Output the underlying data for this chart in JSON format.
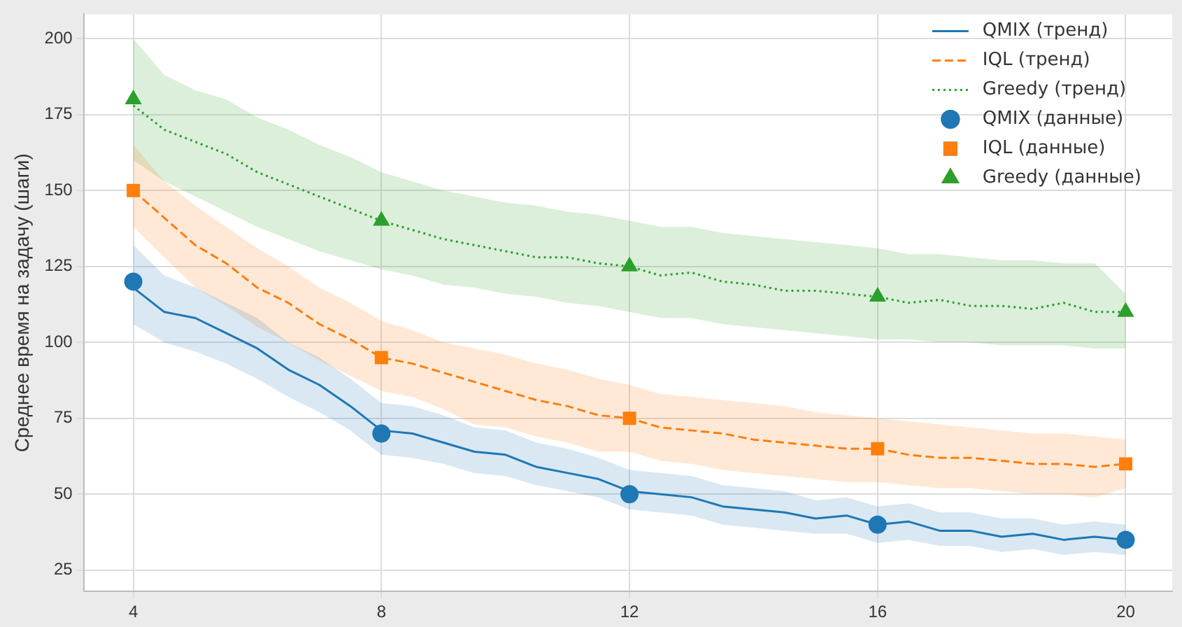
{
  "chart_data": {
    "type": "line",
    "ylabel": "Среднее время на задачу (шаги)",
    "xlim": [
      3.2,
      20.75
    ],
    "ylim": [
      18,
      208
    ],
    "xticks": [
      4,
      8,
      12,
      16,
      20
    ],
    "yticks": [
      25,
      50,
      75,
      100,
      125,
      150,
      175,
      200
    ],
    "grid": true,
    "legend": "top right",
    "x": [
      4,
      4.5,
      5,
      5.5,
      6,
      6.5,
      7,
      7.5,
      8,
      8.5,
      9,
      9.5,
      10,
      10.5,
      11,
      11.5,
      12,
      12.5,
      13,
      13.5,
      14,
      14.5,
      15,
      15.5,
      16,
      16.5,
      17,
      17.5,
      18,
      18.5,
      19,
      19.5,
      20
    ],
    "series": [
      {
        "name": "QMIX (тренд)",
        "color": "#1f77b4",
        "line_style": "solid",
        "values": [
          118,
          110,
          108,
          103,
          98,
          91,
          86,
          79,
          71,
          70,
          67,
          64,
          63,
          59,
          57,
          55,
          51,
          50,
          49,
          46,
          45,
          44,
          42,
          43,
          40,
          41,
          38,
          38,
          36,
          37,
          35,
          36,
          35
        ],
        "lower": [
          106,
          100,
          97,
          93,
          88,
          82,
          77,
          71,
          63,
          62,
          60,
          57,
          56,
          53,
          51,
          49,
          45,
          44,
          43,
          40,
          39,
          38,
          37,
          37,
          34,
          35,
          33,
          33,
          31,
          32,
          30,
          31,
          30
        ],
        "upper": [
          132,
          122,
          118,
          113,
          108,
          100,
          95,
          88,
          80,
          79,
          76,
          72,
          71,
          67,
          65,
          62,
          58,
          57,
          56,
          53,
          52,
          51,
          48,
          49,
          46,
          47,
          44,
          44,
          42,
          42,
          40,
          41,
          40
        ]
      },
      {
        "name": "IQL (тренд)",
        "color": "#ff7f0e",
        "line_style": "dashed",
        "values": [
          150,
          141,
          132,
          126,
          118,
          113,
          106,
          101,
          95,
          93,
          90,
          87,
          84,
          81,
          79,
          76,
          75,
          72,
          71,
          70,
          68,
          67,
          66,
          65,
          65,
          63,
          62,
          62,
          61,
          60,
          60,
          59,
          60
        ],
        "lower": [
          138,
          128,
          118,
          112,
          105,
          100,
          94,
          89,
          84,
          82,
          78,
          73,
          72,
          69,
          67,
          64,
          64,
          61,
          60,
          58,
          57,
          56,
          55,
          54,
          54,
          53,
          52,
          52,
          51,
          50,
          50,
          49,
          52
        ],
        "upper": [
          165,
          153,
          145,
          138,
          131,
          125,
          118,
          113,
          107,
          104,
          100,
          98,
          96,
          93,
          91,
          88,
          86,
          83,
          82,
          81,
          80,
          79,
          77,
          76,
          75,
          74,
          73,
          72,
          71,
          70,
          70,
          69,
          68
        ]
      },
      {
        "name": "Greedy (тренд)",
        "color": "#2ca02c",
        "line_style": "dotted",
        "values": [
          178,
          170,
          166,
          162,
          156,
          152,
          148,
          144,
          140,
          137,
          134,
          132,
          130,
          128,
          128,
          126,
          125,
          122,
          123,
          120,
          119,
          117,
          117,
          116,
          115,
          113,
          114,
          112,
          112,
          111,
          113,
          110,
          110
        ],
        "lower": [
          160,
          153,
          148,
          143,
          138,
          134,
          130,
          127,
          124,
          122,
          119,
          118,
          116,
          115,
          113,
          112,
          110,
          108,
          108,
          106,
          105,
          104,
          103,
          102,
          101,
          101,
          100,
          100,
          99,
          99,
          99,
          98,
          98
        ],
        "upper": [
          200,
          188,
          183,
          180,
          174,
          170,
          165,
          161,
          156,
          153,
          150,
          148,
          146,
          145,
          143,
          142,
          140,
          138,
          138,
          136,
          135,
          134,
          133,
          132,
          131,
          129,
          129,
          128,
          127,
          127,
          126,
          126,
          116
        ]
      },
      {
        "name": "QMIX (данные)",
        "type": "scatter",
        "marker": "circle",
        "color": "#1f77b4",
        "x": [
          4,
          8,
          12,
          16,
          20
        ],
        "values": [
          120,
          70,
          50,
          40,
          35
        ]
      },
      {
        "name": "IQL (данные)",
        "type": "scatter",
        "marker": "square",
        "color": "#ff7f0e",
        "x": [
          4,
          8,
          12,
          16,
          20
        ],
        "values": [
          150,
          95,
          75,
          65,
          60
        ]
      },
      {
        "name": "Greedy (данные)",
        "type": "scatter",
        "marker": "triangle",
        "color": "#2ca02c",
        "x": [
          4,
          8,
          12,
          16,
          20
        ],
        "values": [
          180,
          140,
          125,
          115,
          110
        ]
      }
    ]
  }
}
